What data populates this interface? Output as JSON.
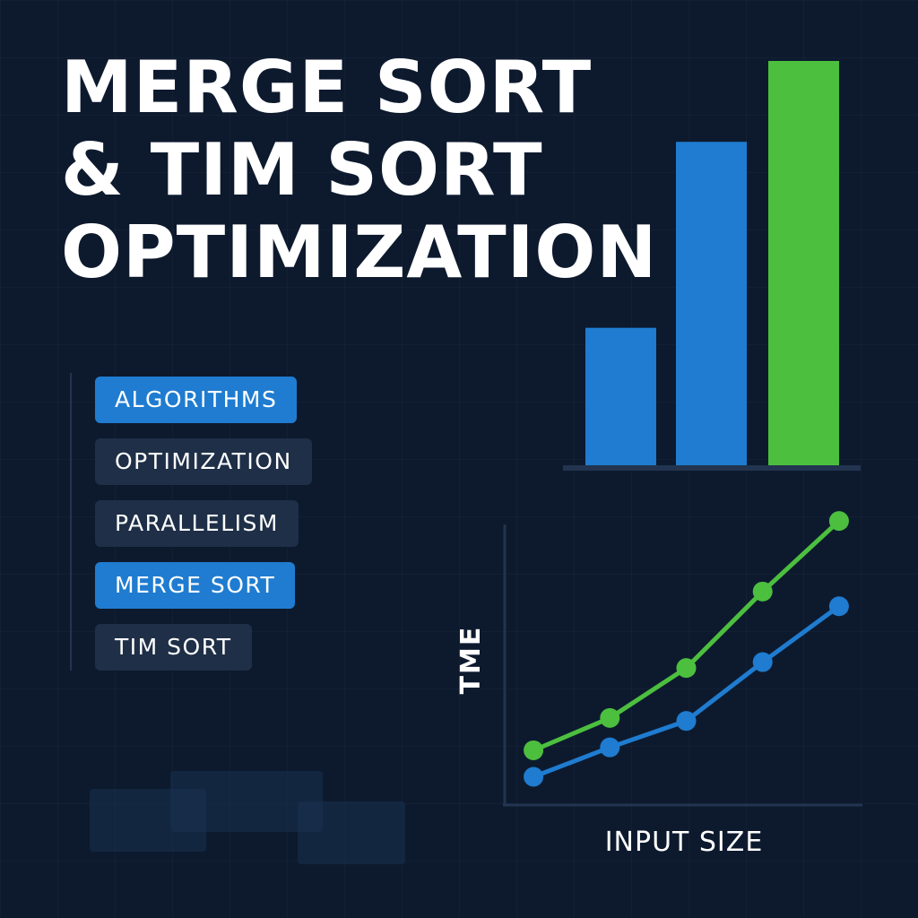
{
  "title": {
    "line1": "MERGE SORT",
    "line2": "& TIM SORT",
    "line3": "OPTIMIZATION"
  },
  "tags": [
    {
      "label": "ALGORITHMS",
      "style": "blue"
    },
    {
      "label": "OPTIMIZATION",
      "style": "dark"
    },
    {
      "label": "PARALLELISM",
      "style": "dark"
    },
    {
      "label": "MERGE SORT",
      "style": "blue"
    },
    {
      "label": "TIM SORT",
      "style": "dark"
    }
  ],
  "colors": {
    "background": "#0d1a2e",
    "blue": "#1f7cd0",
    "green": "#4cbf3f",
    "axis": "#22344f",
    "text": "#ffffff"
  },
  "chart_data": [
    {
      "type": "bar",
      "values": [
        34,
        80,
        100
      ],
      "colors": [
        "#1f7cd0",
        "#1f7cd0",
        "#4cbf3f"
      ],
      "ylim": [
        0,
        100
      ],
      "grid": false
    },
    {
      "type": "line",
      "xlabel": "INPUT SIZE",
      "ylabel": "TME",
      "x": [
        1,
        2,
        3,
        4,
        5
      ],
      "xlim": [
        0.6,
        5.4
      ],
      "ylim": [
        0,
        100
      ],
      "series": [
        {
          "color": "#4cbf3f",
          "values": [
            18,
            29,
            46,
            72,
            96
          ]
        },
        {
          "color": "#1f7cd0",
          "values": [
            9,
            19,
            28,
            48,
            67
          ]
        }
      ],
      "grid": false
    }
  ]
}
